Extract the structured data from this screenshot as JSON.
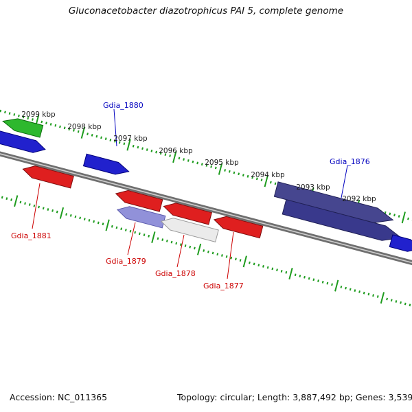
{
  "title": "Gluconacetobacter diazotrophicus PAI 5, complete genome",
  "ruler": {
    "labels": [
      "2099 kbp",
      "2098 kbp",
      "2097 kbp",
      "2096 kbp",
      "2095 kbp",
      "2094 kbp",
      "2093 kbp",
      "2092 kbp"
    ]
  },
  "genes": {
    "gdia_1876": {
      "label": "Gdia_1876",
      "strand": "forward"
    },
    "gdia_1877": {
      "label": "Gdia_1877",
      "strand": "reverse"
    },
    "gdia_1878": {
      "label": "Gdia_1878",
      "strand": "reverse"
    },
    "gdia_1879": {
      "label": "Gdia_1879",
      "strand": "reverse"
    },
    "gdia_1880": {
      "label": "Gdia_1880",
      "strand": "forward"
    },
    "gdia_1881": {
      "label": "Gdia_1881",
      "strand": "reverse"
    }
  },
  "colors": {
    "forward_label": "#0000bf",
    "reverse_label": "#cc0000",
    "cds_blue": "#2121cd",
    "cds_navy_upper": "#46468f",
    "cds_navy_lower": "#39398c",
    "cds_red": "#df1f1f",
    "cds_purple": "#9191d9",
    "cds_white": "#ebebeb",
    "cds_green": "#2eb82e",
    "tick_green": "#1e9c1e",
    "backbone_gray": "#6f6f6f",
    "backbone_highlight": "#cfcfcf"
  },
  "footer": {
    "accession": "Accession: NC_011365",
    "summary": "Topology: circular; Length: 3,887,492 bp; Genes: 3,539"
  }
}
